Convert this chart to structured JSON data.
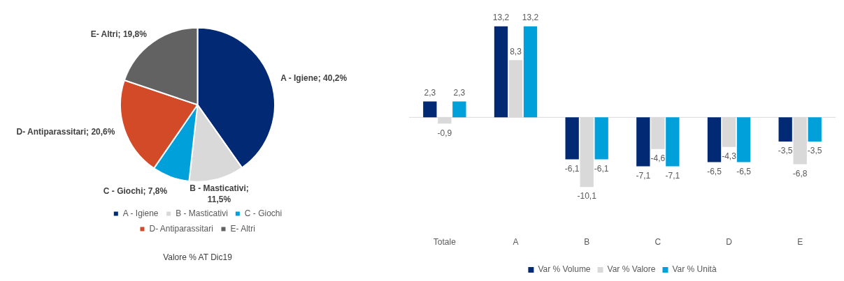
{
  "chart_data": [
    {
      "type": "pie",
      "title": "Valore % AT Dic19",
      "categories": [
        "A - Igiene",
        "B - Masticativi",
        "C - Giochi",
        "D- Antiparassitari",
        "E- Altri"
      ],
      "values": [
        40.2,
        11.5,
        7.8,
        20.6,
        19.8
      ],
      "colors": [
        "#022a74",
        "#d9d9d9",
        "#00a0da",
        "#d24a27",
        "#626262"
      ],
      "value_labels": [
        "A - Igiene; 40,2%",
        "B - Masticativi; 11,5%",
        "C - Giochi; 7,8%",
        "D- Antiparassitari; 20,6%",
        "E- Altri; 19,8%"
      ],
      "legend": "bottom"
    },
    {
      "type": "bar",
      "categories": [
        "Totale",
        "A",
        "B",
        "C",
        "D",
        "E"
      ],
      "legend": "bottom",
      "data_labels": true,
      "series": [
        {
          "name": "Var % Volume",
          "color": "#022a74",
          "values": [
            2.3,
            13.2,
            -6.1,
            -7.1,
            -6.5,
            -3.5
          ],
          "value_labels": [
            "2,3",
            "13,2",
            "-6,1",
            "-7,1",
            "-6,5",
            "-3,5"
          ]
        },
        {
          "name": "Var % Valore",
          "color": "#d9d9d9",
          "values": [
            -0.9,
            8.3,
            -10.1,
            -4.6,
            -4.3,
            -6.8
          ],
          "value_labels": [
            "-0,9",
            "8,3",
            "-10,1",
            "-4,6",
            "-4,3",
            "-6,8"
          ]
        },
        {
          "name": "Var % Unità",
          "color": "#00a0da",
          "values": [
            2.3,
            13.2,
            -6.1,
            -7.1,
            -6.5,
            -3.5
          ],
          "value_labels": [
            "2,3",
            "13,2",
            "-6,1",
            "-7,1",
            "-6,5",
            "-3,5"
          ]
        }
      ]
    }
  ]
}
